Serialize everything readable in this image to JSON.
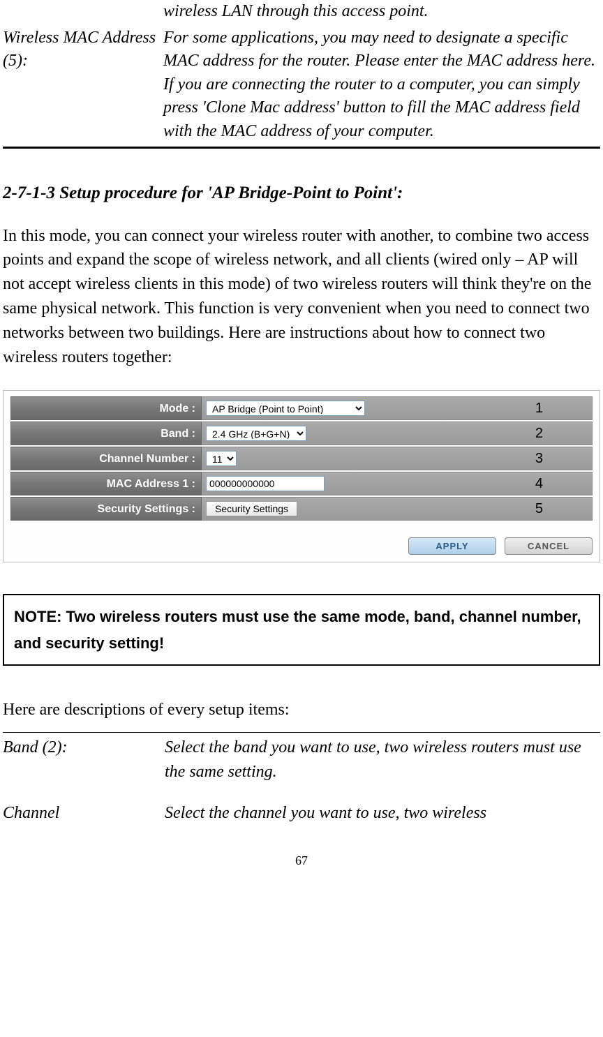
{
  "prev_section": {
    "line0": "wireless LAN through this access point.",
    "label": "Wireless MAC Address (5):",
    "desc": "For some applications, you may need to designate a specific MAC address for the router. Please enter the MAC address here. If you are connecting the router to a computer, you can simply press 'Clone Mac address' button to fill the MAC address field with the MAC address of your computer."
  },
  "heading": "2-7-1-3 Setup procedure for 'AP Bridge-Point to Point':",
  "intro_para": "In this mode, you can connect your wireless router with another, to combine two access points and expand the scope of wireless network, and all clients (wired only – AP will not accept wireless clients in this mode) of two wireless routers will think they're on the same physical network. This function is very convenient when you need to connect two networks between two buildings. Here are instructions about how to connect two wireless routers together:",
  "panel": {
    "rows": [
      {
        "label": "Mode :",
        "type": "select",
        "value": "AP Bridge (Point to Point)",
        "callout": "1",
        "cls": "mode"
      },
      {
        "label": "Band :",
        "type": "select",
        "value": "2.4 GHz (B+G+N)",
        "callout": "2",
        "cls": "band"
      },
      {
        "label": "Channel Number :",
        "type": "select",
        "value": "11",
        "callout": "3",
        "cls": "channel"
      },
      {
        "label": "MAC Address 1 :",
        "type": "input",
        "value": "000000000000",
        "callout": "4"
      },
      {
        "label": "Security Settings :",
        "type": "button",
        "value": "Security Settings",
        "callout": "5"
      }
    ],
    "apply": "APPLY",
    "cancel": "CANCEL"
  },
  "note": "NOTE: Two wireless routers must use the same mode, band, channel number, and security setting!",
  "desc_intro": "Here are descriptions of every setup items:",
  "desc_items": [
    {
      "label": "Band (2):",
      "text": "Select the band you want to use, two wireless routers must use the same setting."
    },
    {
      "label": "Channel",
      "text": "Select the channel you want to use, two wireless"
    }
  ],
  "page_number": "67",
  "colors": {
    "label_bg_start": "#8f8f8f",
    "label_bg_end": "#6a6a6a",
    "value_bg": "#9a9a9a",
    "apply_text": "#2a5a8a",
    "cancel_text": "#555555"
  }
}
